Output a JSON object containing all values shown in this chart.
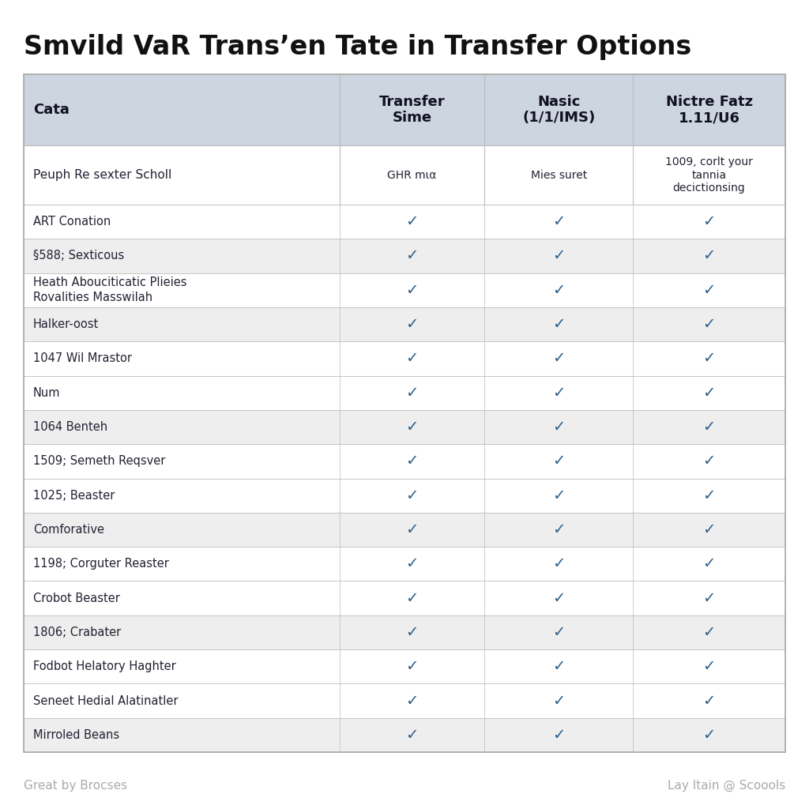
{
  "title": "Smvild VaR Trans’en Tate in Transfer Options",
  "col_headers": [
    "Cata",
    "Transfer\nSime",
    "Nasic\n(1/1/IMS)",
    "Nictre Fatz\n1.11/U6"
  ],
  "first_row_label": "Peuph Re sexter Scholl",
  "first_row_col1": "GHR mια",
  "first_row_col2": "Mies suret",
  "first_row_col3": "1009, corlt your\ntannia\ndecictionsing",
  "rows": [
    {
      "label": "ART Conation",
      "checks": [
        true,
        true,
        true
      ],
      "shaded": false,
      "thick_below": false
    },
    {
      "label": "§588; Sexticous",
      "checks": [
        true,
        true,
        true
      ],
      "shaded": true,
      "thick_below": false
    },
    {
      "label": "Heath Abouciticatic Plieies\nRovalities Masswilah",
      "checks": [
        true,
        true,
        true
      ],
      "shaded": false,
      "thick_below": false
    },
    {
      "label": "Halker-oost",
      "checks": [
        true,
        true,
        true
      ],
      "shaded": true,
      "thick_below": false
    },
    {
      "label": "1047 Wil Mrastor",
      "checks": [
        true,
        true,
        true
      ],
      "shaded": false,
      "thick_below": false
    },
    {
      "label": "Num",
      "checks": [
        true,
        true,
        true
      ],
      "shaded": false,
      "thick_below": false
    },
    {
      "label": "1064 Benteh",
      "checks": [
        true,
        true,
        true
      ],
      "shaded": true,
      "thick_below": false
    },
    {
      "label": "1509; Semeth Reqsver",
      "checks": [
        true,
        true,
        true
      ],
      "shaded": false,
      "thick_below": false
    },
    {
      "label": "1025; Beaster",
      "checks": [
        true,
        true,
        true
      ],
      "shaded": false,
      "thick_below": false
    },
    {
      "label": "Comforative",
      "checks": [
        true,
        true,
        true
      ],
      "shaded": true,
      "thick_below": false
    },
    {
      "label": "1198; Corguter Reaster",
      "checks": [
        true,
        true,
        true
      ],
      "shaded": false,
      "thick_below": false
    },
    {
      "label": "Crobot Beaster",
      "checks": [
        true,
        true,
        true
      ],
      "shaded": false,
      "thick_below": false
    },
    {
      "label": "1806; Crabater",
      "checks": [
        true,
        true,
        true
      ],
      "shaded": true,
      "thick_below": false
    },
    {
      "label": "Fodbot Helatory Haghter",
      "checks": [
        true,
        true,
        true
      ],
      "shaded": false,
      "thick_below": false
    },
    {
      "label": "Seneet Hedial Alatinatler",
      "checks": [
        true,
        true,
        true
      ],
      "shaded": false,
      "thick_below": false
    },
    {
      "label": "Mirroled Beans",
      "checks": [
        true,
        true,
        true
      ],
      "shaded": true,
      "thick_below": false
    }
  ],
  "footer_left": "Great by Brocses",
  "footer_right": "Lay Itain @ Scoools",
  "bg_color": "#ffffff",
  "header_bg": "#cdd5e0",
  "shaded_bg": "#eeeeee",
  "white_bg": "#ffffff",
  "check_color": "#2e5f8a",
  "text_color": "#222233",
  "header_text_color": "#111122",
  "border_color": "#bbbbbb",
  "title_color": "#111111",
  "footer_color": "#aaaaaa"
}
